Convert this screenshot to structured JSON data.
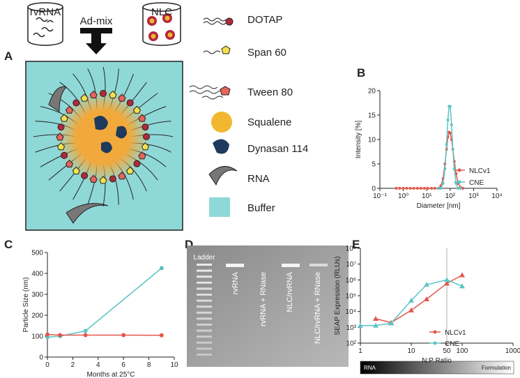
{
  "panel_labels": [
    "A",
    "B",
    "C",
    "D",
    "E"
  ],
  "panel_a": {
    "top": {
      "left_container": "rvRNA",
      "arrow": "Ad-mix",
      "right_container": "NLC"
    },
    "legend": [
      "DOTAP",
      "Span 60",
      "Tween 80",
      "Squalene",
      "Dynasan 114",
      "RNA",
      "Buffer"
    ]
  },
  "panel_d": {
    "lanes": [
      "Ladder",
      "rvRNA",
      "rvRNA + RNase",
      "NLC/rvRNA",
      "NLC/rvRNA + RNase"
    ]
  },
  "panel_e_bar": {
    "left": "RNA",
    "right": "Formulation"
  },
  "chart_data": [
    {
      "type": "line",
      "xlabel": "Diameter [nm]",
      "ylabel": "Intensity [%]",
      "xlog": true,
      "xlim": [
        0.1,
        10000
      ],
      "xticks": [
        {
          "value": 0.1,
          "label": "10⁻¹"
        },
        {
          "value": 1,
          "label": "10⁰"
        },
        {
          "value": 10,
          "label": "10¹"
        },
        {
          "value": 100,
          "label": "10²"
        },
        {
          "value": 1000,
          "label": "10³"
        },
        {
          "value": 10000,
          "label": "10⁴"
        }
      ],
      "ylim": [
        0,
        20
      ],
      "yticks": [
        0,
        5,
        10,
        15,
        20
      ],
      "legend": "right",
      "series": [
        {
          "name": "NLCv1",
          "color": "#e2574c",
          "marker": "circle",
          "x": [
            0.5,
            0.7,
            1,
            1.4,
            2,
            2.8,
            4,
            5.6,
            8,
            11,
            16,
            22,
            32,
            40,
            50,
            60,
            70,
            80,
            90,
            100,
            115,
            130,
            150,
            180,
            220,
            280,
            350
          ],
          "values": [
            0,
            0,
            0,
            0,
            0,
            0,
            0,
            0,
            0,
            0,
            0,
            0,
            0,
            0.5,
            2,
            5,
            8,
            10.5,
            11.5,
            11.3,
            10,
            8,
            5.5,
            3,
            1,
            0.2,
            0
          ]
        },
        {
          "name": "CNE",
          "color": "#5cc4c4",
          "marker": "circle",
          "x": [
            30,
            40,
            50,
            60,
            70,
            80,
            90,
            100,
            115,
            130,
            150,
            180,
            220,
            280
          ],
          "values": [
            0,
            0,
            1,
            4,
            9,
            14,
            16.8,
            16.8,
            13,
            8,
            4,
            1,
            0,
            0
          ]
        }
      ]
    },
    {
      "type": "line",
      "xlabel": "Months at 25°C",
      "ylabel": "Particle Size (nm)",
      "xlim": [
        0,
        10
      ],
      "xticks": [
        0,
        2,
        4,
        6,
        8,
        10
      ],
      "ylim": [
        0,
        500
      ],
      "yticks": [
        0,
        100,
        200,
        300,
        400,
        500
      ],
      "series": [
        {
          "color": "#5cc4c4",
          "marker": "circle",
          "x": [
            0,
            1,
            3,
            9
          ],
          "values": [
            95,
            100,
            125,
            425
          ]
        },
        {
          "color": "#e2574c",
          "marker": "circle",
          "x": [
            0,
            1,
            3,
            6,
            9
          ],
          "values": [
            108,
            105,
            105,
            105,
            104
          ]
        }
      ]
    },
    {
      "type": "line",
      "xlabel": "N:P Ratio",
      "ylabel": "SEAP Expression (RLUs)",
      "xlog": true,
      "ylog": true,
      "xlim": [
        1,
        1000
      ],
      "xticks": [
        1,
        10,
        50,
        100,
        1000
      ],
      "refline": 50,
      "ylim": [
        100,
        100000000
      ],
      "yticks": [
        {
          "value": 100,
          "label": "10²"
        },
        {
          "value": 1000,
          "label": "10³"
        },
        {
          "value": 10000,
          "label": "10⁴"
        },
        {
          "value": 100000,
          "label": "10⁵"
        },
        {
          "value": 1000000,
          "label": "10⁶"
        },
        {
          "value": 10000000,
          "label": "10⁷"
        },
        {
          "value": 100000000,
          "label": "10⁸"
        }
      ],
      "legend": "lower right",
      "series": [
        {
          "name": "NLCv1",
          "color": "#e2574c",
          "marker": "triangle",
          "x": [
            2,
            4,
            10,
            20,
            50,
            100
          ],
          "values": [
            3500,
            2000,
            12000,
            60000,
            600000,
            2000000
          ]
        },
        {
          "name": "CNE",
          "color": "#5cc4c4",
          "marker": "triangle",
          "x": [
            1,
            2,
            4,
            10,
            20,
            50,
            100
          ],
          "values": [
            1300,
            1300,
            1800,
            50000,
            500000,
            1000000,
            400000
          ]
        }
      ]
    }
  ]
}
